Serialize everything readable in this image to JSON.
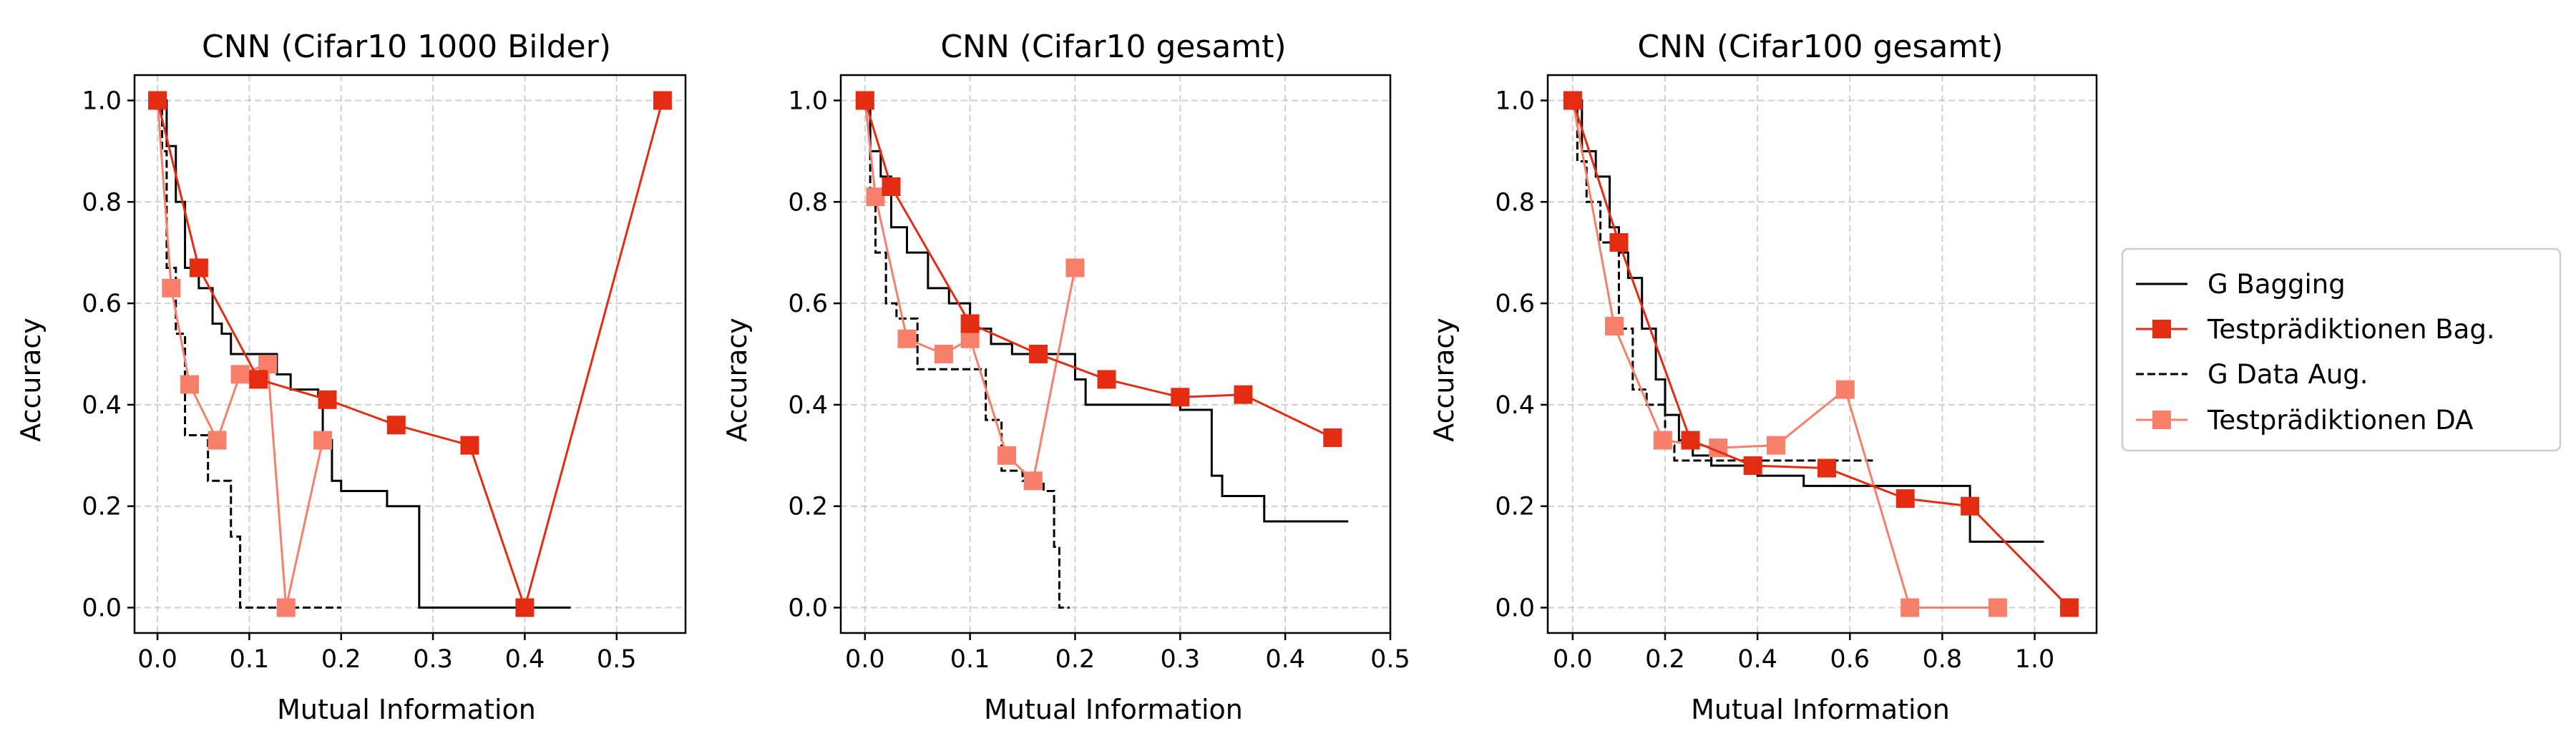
{
  "chart_data": [
    {
      "type": "line",
      "title": "CNN (Cifar10 1000 Bilder)",
      "xlabel": "Mutual Information",
      "ylabel": "Accuracy",
      "xlim": [
        -0.025,
        0.575
      ],
      "ylim": [
        -0.05,
        1.05
      ],
      "xticks": [
        0.0,
        0.1,
        0.2,
        0.3,
        0.4,
        0.5
      ],
      "xtick_labels": [
        "0.0",
        "0.1",
        "0.2",
        "0.3",
        "0.4",
        "0.5"
      ],
      "yticks": [
        0.0,
        0.2,
        0.4,
        0.6,
        0.8,
        1.0
      ],
      "ytick_labels": [
        "0.0",
        "0.2",
        "0.4",
        "0.6",
        "0.8",
        "1.0"
      ],
      "grid": true,
      "series": [
        {
          "name": "G Bagging",
          "style": "solid",
          "color": "#000000",
          "step": true,
          "x": [
            0.0,
            0.01,
            0.02,
            0.03,
            0.045,
            0.06,
            0.07,
            0.08,
            0.095,
            0.13,
            0.145,
            0.175,
            0.18,
            0.19,
            0.2,
            0.25,
            0.27,
            0.285,
            0.35,
            0.45
          ],
          "y": [
            1.0,
            0.91,
            0.8,
            0.67,
            0.63,
            0.56,
            0.54,
            0.5,
            0.5,
            0.46,
            0.43,
            0.42,
            0.33,
            0.25,
            0.23,
            0.2,
            0.2,
            0.0,
            0.0,
            0.0
          ]
        },
        {
          "name": "Testprädiktionen Bag.",
          "style": "marker",
          "color": "#e32c12",
          "x": [
            0.0,
            0.045,
            0.11,
            0.185,
            0.26,
            0.34,
            0.4,
            0.55
          ],
          "y": [
            1.0,
            0.67,
            0.45,
            0.41,
            0.36,
            0.32,
            0.0,
            1.0
          ]
        },
        {
          "name": "G Data Aug.",
          "style": "dashed",
          "color": "#000000",
          "step": true,
          "x": [
            0.0,
            0.005,
            0.01,
            0.02,
            0.03,
            0.04,
            0.055,
            0.065,
            0.08,
            0.09,
            0.1,
            0.2
          ],
          "y": [
            1.0,
            0.9,
            0.67,
            0.54,
            0.34,
            0.34,
            0.25,
            0.25,
            0.14,
            0.0,
            0.0,
            0.0
          ]
        },
        {
          "name": "Testprädiktionen DA",
          "style": "marker",
          "color": "#f87f6a",
          "x": [
            0.0,
            0.015,
            0.035,
            0.065,
            0.09,
            0.12,
            0.14,
            0.18
          ],
          "y": [
            1.0,
            0.63,
            0.44,
            0.33,
            0.46,
            0.48,
            0.0,
            0.33
          ]
        }
      ]
    },
    {
      "type": "line",
      "title": "CNN (Cifar10 gesamt)",
      "xlabel": "Mutual Information",
      "ylabel": "Accuracy",
      "xlim": [
        -0.023,
        0.5
      ],
      "ylim": [
        -0.05,
        1.05
      ],
      "xticks": [
        0.0,
        0.1,
        0.2,
        0.3,
        0.4,
        0.5
      ],
      "xtick_labels": [
        "0.0",
        "0.1",
        "0.2",
        "0.3",
        "0.4",
        "0.5"
      ],
      "yticks": [
        0.0,
        0.2,
        0.4,
        0.6,
        0.8,
        1.0
      ],
      "ytick_labels": [
        "0.0",
        "0.2",
        "0.4",
        "0.6",
        "0.8",
        "1.0"
      ],
      "grid": true,
      "series": [
        {
          "name": "G Bagging",
          "style": "solid",
          "color": "#000000",
          "step": true,
          "x": [
            0.0,
            0.005,
            0.015,
            0.025,
            0.04,
            0.06,
            0.08,
            0.1,
            0.12,
            0.14,
            0.16,
            0.2,
            0.21,
            0.3,
            0.33,
            0.34,
            0.37,
            0.38,
            0.46
          ],
          "y": [
            1.0,
            0.9,
            0.85,
            0.75,
            0.7,
            0.63,
            0.6,
            0.55,
            0.52,
            0.5,
            0.5,
            0.45,
            0.4,
            0.39,
            0.26,
            0.22,
            0.22,
            0.17,
            0.17
          ]
        },
        {
          "name": "Testprädiktionen Bag.",
          "style": "marker",
          "color": "#e32c12",
          "x": [
            0.0,
            0.025,
            0.1,
            0.165,
            0.23,
            0.3,
            0.36,
            0.445
          ],
          "y": [
            1.0,
            0.83,
            0.56,
            0.5,
            0.45,
            0.415,
            0.42,
            0.335
          ]
        },
        {
          "name": "G Data Aug.",
          "style": "dashed",
          "color": "#000000",
          "step": true,
          "x": [
            0.0,
            0.005,
            0.01,
            0.02,
            0.03,
            0.05,
            0.07,
            0.1,
            0.115,
            0.13,
            0.15,
            0.17,
            0.18,
            0.185,
            0.195
          ],
          "y": [
            1.0,
            0.8,
            0.7,
            0.6,
            0.57,
            0.47,
            0.47,
            0.47,
            0.37,
            0.27,
            0.25,
            0.23,
            0.12,
            0.0,
            0.0
          ]
        },
        {
          "name": "Testprädiktionen DA",
          "style": "marker",
          "color": "#f87f6a",
          "x": [
            0.0,
            0.01,
            0.04,
            0.075,
            0.1,
            0.135,
            0.16,
            0.2
          ],
          "y": [
            1.0,
            0.81,
            0.53,
            0.5,
            0.53,
            0.3,
            0.25,
            0.67
          ]
        }
      ]
    },
    {
      "type": "line",
      "title": "CNN (Cifar100 gesamt)",
      "xlabel": "Mutual Information",
      "ylabel": "Accuracy",
      "xlim": [
        -0.054,
        1.134
      ],
      "ylim": [
        -0.05,
        1.05
      ],
      "xticks": [
        0.0,
        0.2,
        0.4,
        0.6,
        0.8,
        1.0
      ],
      "xtick_labels": [
        "0.0",
        "0.2",
        "0.4",
        "0.6",
        "0.8",
        "1.0"
      ],
      "yticks": [
        0.0,
        0.2,
        0.4,
        0.6,
        0.8,
        1.0
      ],
      "ytick_labels": [
        "0.0",
        "0.2",
        "0.4",
        "0.6",
        "0.8",
        "1.0"
      ],
      "grid": true,
      "series": [
        {
          "name": "G Bagging",
          "style": "solid",
          "color": "#000000",
          "step": true,
          "x": [
            0.0,
            0.02,
            0.05,
            0.08,
            0.1,
            0.12,
            0.15,
            0.18,
            0.2,
            0.23,
            0.26,
            0.3,
            0.4,
            0.5,
            0.85,
            0.86,
            1.02
          ],
          "y": [
            1.0,
            0.9,
            0.85,
            0.75,
            0.7,
            0.65,
            0.55,
            0.45,
            0.38,
            0.33,
            0.3,
            0.28,
            0.26,
            0.24,
            0.24,
            0.13,
            0.13
          ]
        },
        {
          "name": "Testprädiktionen Bag.",
          "style": "marker",
          "color": "#e32c12",
          "x": [
            0.0,
            0.1,
            0.255,
            0.39,
            0.55,
            0.72,
            0.86,
            1.075
          ],
          "y": [
            1.0,
            0.72,
            0.33,
            0.28,
            0.275,
            0.215,
            0.2,
            0.0
          ]
        },
        {
          "name": "G Data Aug.",
          "style": "dashed",
          "color": "#000000",
          "step": true,
          "x": [
            0.0,
            0.01,
            0.03,
            0.06,
            0.1,
            0.13,
            0.16,
            0.2,
            0.22,
            0.28,
            0.4,
            0.65
          ],
          "y": [
            1.0,
            0.88,
            0.8,
            0.72,
            0.55,
            0.43,
            0.4,
            0.32,
            0.29,
            0.29,
            0.29,
            0.29
          ]
        },
        {
          "name": "Testprädiktionen DA",
          "style": "marker",
          "color": "#f87f6a",
          "x": [
            0.0,
            0.09,
            0.195,
            0.315,
            0.44,
            0.59,
            0.73,
            0.92
          ],
          "y": [
            1.0,
            0.555,
            0.33,
            0.315,
            0.32,
            0.43,
            0.0,
            0.0
          ]
        }
      ]
    }
  ],
  "legend": {
    "placement": "right",
    "items": [
      {
        "label": "G Bagging",
        "style": "solid",
        "color": "#000000"
      },
      {
        "label": "Testprädiktionen Bag.",
        "style": "marker",
        "color": "#e32c12"
      },
      {
        "label": "G Data Aug.",
        "style": "dashed",
        "color": "#000000"
      },
      {
        "label": "Testprädiktionen DA",
        "style": "marker",
        "color": "#f87f6a"
      }
    ]
  }
}
